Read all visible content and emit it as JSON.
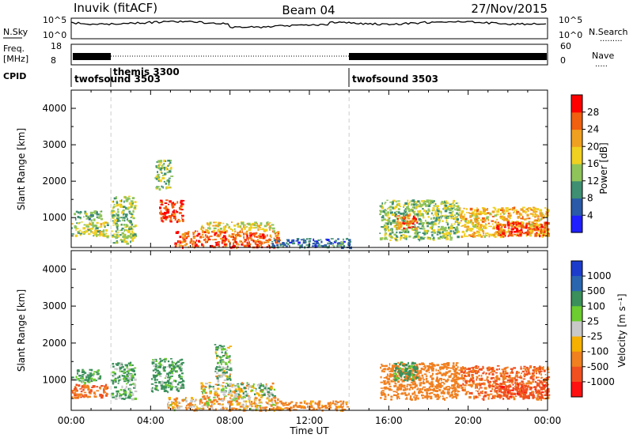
{
  "header": {
    "station": "Inuvik (fitACF)",
    "beam": "Beam 04",
    "date": "27/Nov/2015"
  },
  "left_labels": {
    "nsky": "N.Sky",
    "freq": "Freq.",
    "freq_unit": "[MHz]",
    "cpid": "CPID"
  },
  "right_labels": {
    "nsearch": "N.Search",
    "nsearch_dots": ".........",
    "nave": "Nave",
    "nave_dots": "....."
  },
  "noise_panel": {
    "left_ticks": [
      "10^5",
      "10^0"
    ],
    "right_ticks": [
      "10^5",
      "10^0"
    ]
  },
  "freq_panel": {
    "left_ticks": [
      "18",
      "8"
    ],
    "right_ticks": [
      "60",
      "0"
    ]
  },
  "cpid_panel": {
    "entries": [
      {
        "label": "twofsound 3503",
        "start_hour": 0
      },
      {
        "label": "themis 3300",
        "start_hour": 2
      },
      {
        "label": "twofsound 3503",
        "start_hour": 14
      }
    ]
  },
  "axes": {
    "ylabel": "Slant Range [km]",
    "xlabel": "Time UT",
    "xticks": [
      "00:00",
      "04:00",
      "08:00",
      "12:00",
      "16:00",
      "20:00",
      "00:00"
    ],
    "yticks": [
      "1000",
      "2000",
      "3000",
      "4000"
    ]
  },
  "colorbars": {
    "power": {
      "label": "Power [dB]",
      "ticks": [
        "4",
        "8",
        "12",
        "16",
        "20",
        "24",
        "28"
      ],
      "colors": [
        "#1f1fff",
        "#2a5aa8",
        "#3f8f72",
        "#8fc45a",
        "#f0d020",
        "#f0a020",
        "#f06010",
        "#ff0000"
      ]
    },
    "velocity": {
      "label": "Velocity [m s⁻¹]",
      "ticks": [
        "1000",
        "500",
        "100",
        "25",
        "-25",
        "-100",
        "-500",
        "-1000"
      ],
      "colors": [
        "#1c3ccc",
        "#2a66b0",
        "#3a8f5a",
        "#6ccc30",
        "#c8c8c8",
        "#f5b000",
        "#f08020",
        "#f05020",
        "#ff1010"
      ]
    }
  },
  "chart_data": [
    {
      "type": "heatmap",
      "title": "Power",
      "xlabel": "Time UT",
      "ylabel": "Slant Range [km]",
      "xlim_hours": [
        0,
        24
      ],
      "ylim_km": [
        180,
        4500
      ],
      "color_scale": "Power [dB]",
      "color_range": [
        0,
        32
      ],
      "blobs": [
        {
          "t0": 0.0,
          "t1": 1.8,
          "r0": 500,
          "r1": 900,
          "value": 16
        },
        {
          "t0": 0.0,
          "t1": 1.5,
          "r0": 950,
          "r1": 1200,
          "value": 12
        },
        {
          "t0": 2.0,
          "t1": 3.2,
          "r0": 300,
          "r1": 1600,
          "value": 14
        },
        {
          "t0": 4.4,
          "t1": 5.6,
          "r0": 900,
          "r1": 1500,
          "value": 28
        },
        {
          "t0": 5.2,
          "t1": 10.5,
          "r0": 200,
          "r1": 650,
          "value": 26
        },
        {
          "t0": 6.5,
          "t1": 10.2,
          "r0": 650,
          "r1": 900,
          "value": 18
        },
        {
          "t0": 10.0,
          "t1": 14.0,
          "r0": 200,
          "r1": 450,
          "value": 8
        },
        {
          "t0": 15.5,
          "t1": 19.5,
          "r0": 400,
          "r1": 1500,
          "value": 14
        },
        {
          "t0": 16.3,
          "t1": 17.4,
          "r0": 700,
          "r1": 1100,
          "value": 26
        },
        {
          "t0": 19.5,
          "t1": 24.0,
          "r0": 500,
          "r1": 1300,
          "value": 20
        },
        {
          "t0": 21.3,
          "t1": 24.0,
          "r0": 500,
          "r1": 900,
          "value": 28
        },
        {
          "t0": 4.2,
          "t1": 5.0,
          "r0": 1800,
          "r1": 2600,
          "value": 14
        }
      ]
    },
    {
      "type": "heatmap",
      "title": "Velocity",
      "xlabel": "Time UT",
      "ylabel": "Slant Range [km]",
      "xlim_hours": [
        0,
        24
      ],
      "ylim_km": [
        180,
        4500
      ],
      "color_scale": "Velocity [m s-1]",
      "color_range": [
        -1000,
        1000
      ],
      "blobs": [
        {
          "t0": 0.0,
          "t1": 1.8,
          "r0": 550,
          "r1": 900,
          "value": -300
        },
        {
          "t0": 0.0,
          "t1": 1.5,
          "r0": 950,
          "r1": 1300,
          "value": 100
        },
        {
          "t0": 2.0,
          "t1": 3.2,
          "r0": 500,
          "r1": 1500,
          "value": 80
        },
        {
          "t0": 4.0,
          "t1": 5.6,
          "r0": 700,
          "r1": 1600,
          "value": 100
        },
        {
          "t0": 6.5,
          "t1": 10.2,
          "r0": 550,
          "r1": 950,
          "value": 0
        },
        {
          "t0": 4.8,
          "t1": 10.5,
          "r0": 200,
          "r1": 550,
          "value": -60
        },
        {
          "t0": 10.0,
          "t1": 14.0,
          "r0": 200,
          "r1": 450,
          "value": -120
        },
        {
          "t0": 15.5,
          "t1": 19.5,
          "r0": 500,
          "r1": 1500,
          "value": -200
        },
        {
          "t0": 16.2,
          "t1": 17.4,
          "r0": 1000,
          "r1": 1500,
          "value": 120
        },
        {
          "t0": 19.5,
          "t1": 24.0,
          "r0": 500,
          "r1": 1400,
          "value": -300
        },
        {
          "t0": 21.5,
          "t1": 24.0,
          "r0": 550,
          "r1": 900,
          "value": -700
        },
        {
          "t0": 7.2,
          "t1": 8.0,
          "r0": 1000,
          "r1": 2000,
          "value": 30
        }
      ]
    }
  ]
}
